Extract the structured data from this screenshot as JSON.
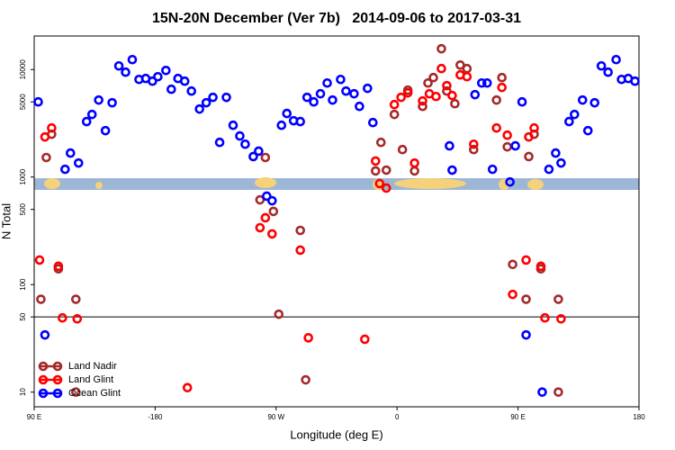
{
  "chart_data": {
    "type": "scatter",
    "title": "15N-20N December (Ver 7b)   2014-09-06 to 2017-03-31",
    "xlabel": "Longitude (deg E)",
    "ylabel": "N Total",
    "xlim": [
      -270,
      180
    ],
    "xticks": [
      {
        "value": -270,
        "label": "90 E"
      },
      -180,
      {
        "value": -90,
        "label": "90 W"
      },
      0,
      {
        "value": 90,
        "label": "90 E"
      },
      180
    ],
    "ylim": [
      7.3,
      20500
    ],
    "yticks": [
      10,
      50,
      100,
      500,
      1000,
      5000,
      10000
    ],
    "log_y": true,
    "reference_line": 50,
    "legend": "bottom-left",
    "series": [
      {
        "name": "Land Nadir",
        "color": "#a52a2a",
        "x": [
          -261,
          -257,
          -265,
          -252,
          -239,
          -239,
          -98,
          -102,
          -92,
          -88,
          -72,
          -68,
          -16,
          -12,
          -8,
          -2,
          4,
          8,
          13,
          19,
          23,
          27,
          33,
          37,
          43,
          47,
          52,
          57,
          74,
          78,
          82,
          86,
          96,
          98,
          102,
          107,
          120,
          120
        ],
        "values": [
          1520,
          2500,
          73,
          140,
          73,
          10,
          1520,
          614,
          479,
          53,
          319,
          13,
          1140,
          2100,
          1160,
          3820,
          1800,
          6430,
          1140,
          4540,
          7490,
          8410,
          15600,
          6300,
          4810,
          11000,
          10200,
          1800,
          5200,
          8410,
          1910,
          154,
          73,
          1550,
          2500,
          140,
          73,
          10
        ]
      },
      {
        "name": "Land Glint",
        "color": "#ff0000",
        "x": [
          -262,
          -257,
          -266,
          -252,
          -249,
          -238,
          -156,
          -102,
          -98,
          -93,
          -72,
          -66,
          -24,
          -16,
          -13,
          -8,
          -2,
          3,
          8,
          13,
          19,
          24,
          29,
          33,
          37,
          41,
          47,
          52,
          57,
          74,
          78,
          82,
          86,
          96,
          98,
          102,
          107,
          110,
          122
        ],
        "values": [
          2360,
          2860,
          169,
          148,
          49,
          48,
          11,
          338,
          418,
          296,
          209,
          32,
          31,
          1410,
          870,
          790,
          4720,
          5510,
          6070,
          1350,
          5100,
          5950,
          5610,
          10200,
          7080,
          5730,
          8910,
          8570,
          2020,
          2860,
          6810,
          2450,
          81,
          169,
          2360,
          2860,
          148,
          49,
          48
        ]
      },
      {
        "name": "Ocean Glint",
        "color": "#0000ff",
        "x": [
          -267,
          -262,
          -247,
          -243,
          -237,
          -231,
          -227,
          -222,
          -217,
          -212,
          -207,
          -202,
          -197,
          -192,
          -187,
          -182,
          -178,
          -172,
          -168,
          -163,
          -158,
          -153,
          -147,
          -142,
          -137,
          -132,
          -127,
          -122,
          -117,
          -113,
          -107,
          -103,
          -97,
          -93,
          -86,
          -82,
          -77,
          -72,
          -67,
          -62,
          -57,
          -52,
          -48,
          -42,
          -38,
          -32,
          -28,
          -22,
          -18,
          39,
          41,
          58,
          63,
          67,
          71,
          84,
          88,
          93,
          96,
          108,
          113,
          118,
          122,
          128,
          132,
          138,
          142,
          147,
          152,
          157,
          163,
          167,
          172,
          177
        ],
        "values": [
          5000,
          34,
          1180,
          1670,
          1350,
          3280,
          3820,
          5200,
          2700,
          4910,
          10800,
          9440,
          12360,
          8090,
          8250,
          7790,
          8570,
          9800,
          6550,
          8250,
          7790,
          6300,
          4290,
          4910,
          5510,
          2100,
          5510,
          3030,
          2410,
          2020,
          1550,
          1740,
          664,
          602,
          3030,
          3900,
          3340,
          3280,
          5510,
          5000,
          5950,
          7490,
          5200,
          8090,
          6300,
          5950,
          4540,
          6680,
          3210,
          1950,
          1160,
          5840,
          7490,
          7490,
          1180,
          900,
          1950,
          5000,
          34,
          10,
          1180,
          1670,
          1350,
          3280,
          3820,
          5200,
          2700,
          4910,
          10800,
          9440,
          12360,
          8090,
          8250,
          7790
        ]
      }
    ]
  }
}
